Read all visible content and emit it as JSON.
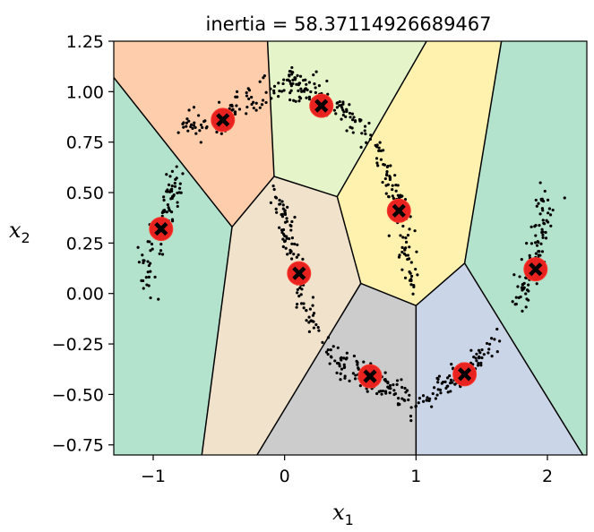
{
  "chart_data": {
    "type": "scatter",
    "title": "inertia = 58.37114926689467",
    "xlabel": {
      "base": "x",
      "sub": "1"
    },
    "ylabel": {
      "base": "x",
      "sub": "2"
    },
    "xlim": [
      -1.3,
      2.3
    ],
    "ylim": [
      -0.8,
      1.25
    ],
    "x_ticks": [
      -1,
      0,
      1,
      2
    ],
    "x_tick_labels": [
      "−1",
      "0",
      "1",
      "2"
    ],
    "y_ticks": [
      -0.75,
      -0.5,
      -0.25,
      0.0,
      0.25,
      0.5,
      0.75,
      1.0,
      1.25
    ],
    "y_tick_labels": [
      "−0.75",
      "−0.50",
      "−0.25",
      "0.00",
      "0.25",
      "0.50",
      "0.75",
      "1.00",
      "1.25"
    ],
    "grid": false,
    "centroid_marker": "black X on red circle",
    "centroids": [
      {
        "x": -0.47,
        "y": 0.86
      },
      {
        "x": 0.28,
        "y": 0.93
      },
      {
        "x": -0.94,
        "y": 0.32
      },
      {
        "x": 0.87,
        "y": 0.41
      },
      {
        "x": 0.11,
        "y": 0.1
      },
      {
        "x": 1.91,
        "y": 0.12
      },
      {
        "x": 0.65,
        "y": -0.41
      },
      {
        "x": 1.37,
        "y": -0.4
      }
    ],
    "regions": [
      {
        "name": "orange",
        "color": "#fdcdac",
        "points": [
          [
            -1.3,
            1.25
          ],
          [
            -0.13,
            1.25
          ],
          [
            -0.08,
            0.58
          ],
          [
            -0.4,
            0.33
          ],
          [
            -1.3,
            1.07
          ]
        ]
      },
      {
        "name": "lime",
        "color": "#e6f5c9",
        "points": [
          [
            -0.13,
            1.25
          ],
          [
            1.08,
            1.25
          ],
          [
            0.4,
            0.48
          ],
          [
            -0.08,
            0.58
          ]
        ]
      },
      {
        "name": "yellow",
        "color": "#fff2ae",
        "points": [
          [
            1.08,
            1.25
          ],
          [
            1.65,
            1.25
          ],
          [
            1.37,
            0.15
          ],
          [
            1.0,
            -0.06
          ],
          [
            0.58,
            0.05
          ],
          [
            0.4,
            0.48
          ]
        ]
      },
      {
        "name": "green-right",
        "color": "#b3e2cd",
        "points": [
          [
            1.65,
            1.25
          ],
          [
            2.3,
            1.25
          ],
          [
            2.3,
            -0.8
          ],
          [
            2.27,
            -0.8
          ],
          [
            1.37,
            0.15
          ]
        ]
      },
      {
        "name": "green-left",
        "color": "#b3e2cd",
        "points": [
          [
            -1.3,
            1.07
          ],
          [
            -0.4,
            0.33
          ],
          [
            -0.63,
            -0.8
          ],
          [
            -1.3,
            -0.8
          ]
        ]
      },
      {
        "name": "beige",
        "color": "#f1e2cc",
        "points": [
          [
            -0.08,
            0.58
          ],
          [
            0.4,
            0.48
          ],
          [
            0.58,
            0.05
          ],
          [
            -0.21,
            -0.8
          ],
          [
            -0.63,
            -0.8
          ],
          [
            -0.4,
            0.33
          ]
        ]
      },
      {
        "name": "gray",
        "color": "#cccccc",
        "points": [
          [
            0.58,
            0.05
          ],
          [
            1.0,
            -0.06
          ],
          [
            1.0,
            -0.8
          ],
          [
            -0.21,
            -0.8
          ]
        ]
      },
      {
        "name": "blue",
        "color": "#cbd5e8",
        "points": [
          [
            1.0,
            -0.06
          ],
          [
            1.37,
            0.15
          ],
          [
            2.27,
            -0.8
          ],
          [
            1.0,
            -0.8
          ]
        ]
      }
    ],
    "boundaries": [
      [
        [
          -1.3,
          1.07
        ],
        [
          -0.4,
          0.33
        ]
      ],
      [
        [
          -0.13,
          1.25
        ],
        [
          -0.08,
          0.58
        ]
      ],
      [
        [
          -0.08,
          0.58
        ],
        [
          -0.4,
          0.33
        ]
      ],
      [
        [
          -0.4,
          0.33
        ],
        [
          -0.63,
          -0.8
        ]
      ],
      [
        [
          -0.08,
          0.58
        ],
        [
          0.4,
          0.48
        ]
      ],
      [
        [
          1.08,
          1.25
        ],
        [
          0.4,
          0.48
        ]
      ],
      [
        [
          0.4,
          0.48
        ],
        [
          0.58,
          0.05
        ]
      ],
      [
        [
          0.58,
          0.05
        ],
        [
          -0.21,
          -0.8
        ]
      ],
      [
        [
          0.58,
          0.05
        ],
        [
          1.0,
          -0.06
        ]
      ],
      [
        [
          1.0,
          -0.06
        ],
        [
          1.0,
          -0.8
        ]
      ],
      [
        [
          1.0,
          -0.06
        ],
        [
          1.37,
          0.15
        ]
      ],
      [
        [
          1.65,
          1.25
        ],
        [
          1.37,
          0.15
        ]
      ],
      [
        [
          1.37,
          0.15
        ],
        [
          2.27,
          -0.8
        ]
      ]
    ],
    "point_clusters": [
      {
        "path": [
          [
            -0.8,
            0.82
          ],
          [
            -0.62,
            0.82
          ],
          [
            -0.47,
            0.87
          ],
          [
            -0.33,
            0.93
          ],
          [
            -0.15,
            1.0
          ],
          [
            0.03,
            1.05
          ],
          [
            0.12,
            1.03
          ]
        ],
        "count": 110,
        "spread_x": 0.03,
        "spread_y": 0.04
      },
      {
        "path": [
          [
            0.0,
            1.03
          ],
          [
            0.12,
            1.01
          ],
          [
            0.28,
            0.97
          ],
          [
            0.45,
            0.9
          ],
          [
            0.62,
            0.8
          ]
        ],
        "count": 100,
        "spread_x": 0.03,
        "spread_y": 0.04
      },
      {
        "path": [
          [
            -1.06,
            0.02
          ],
          [
            -1.0,
            0.2
          ],
          [
            -0.94,
            0.34
          ],
          [
            -0.88,
            0.45
          ],
          [
            -0.82,
            0.58
          ]
        ],
        "count": 95,
        "spread_x": 0.04,
        "spread_y": 0.04
      },
      {
        "path": [
          [
            0.68,
            0.74
          ],
          [
            0.76,
            0.62
          ],
          [
            0.84,
            0.5
          ],
          [
            0.9,
            0.34
          ],
          [
            0.93,
            0.2
          ],
          [
            0.98,
            0.05
          ]
        ],
        "count": 100,
        "spread_x": 0.035,
        "spread_y": 0.035
      },
      {
        "path": [
          [
            -0.05,
            0.5
          ],
          [
            0.0,
            0.38
          ],
          [
            0.05,
            0.24
          ],
          [
            0.1,
            0.1
          ],
          [
            0.16,
            -0.06
          ],
          [
            0.24,
            -0.16
          ]
        ],
        "count": 100,
        "spread_x": 0.035,
        "spread_y": 0.035
      },
      {
        "path": [
          [
            1.78,
            -0.06
          ],
          [
            1.84,
            0.06
          ],
          [
            1.9,
            0.18
          ],
          [
            1.96,
            0.32
          ],
          [
            2.02,
            0.5
          ]
        ],
        "count": 95,
        "spread_x": 0.04,
        "spread_y": 0.04
      },
      {
        "path": [
          [
            0.3,
            -0.26
          ],
          [
            0.42,
            -0.34
          ],
          [
            0.55,
            -0.4
          ],
          [
            0.7,
            -0.44
          ],
          [
            0.85,
            -0.5
          ],
          [
            1.0,
            -0.56
          ]
        ],
        "count": 110,
        "spread_x": 0.03,
        "spread_y": 0.035
      },
      {
        "path": [
          [
            1.05,
            -0.53
          ],
          [
            1.18,
            -0.48
          ],
          [
            1.32,
            -0.42
          ],
          [
            1.45,
            -0.34
          ],
          [
            1.6,
            -0.23
          ]
        ],
        "count": 100,
        "spread_x": 0.03,
        "spread_y": 0.035
      }
    ]
  }
}
